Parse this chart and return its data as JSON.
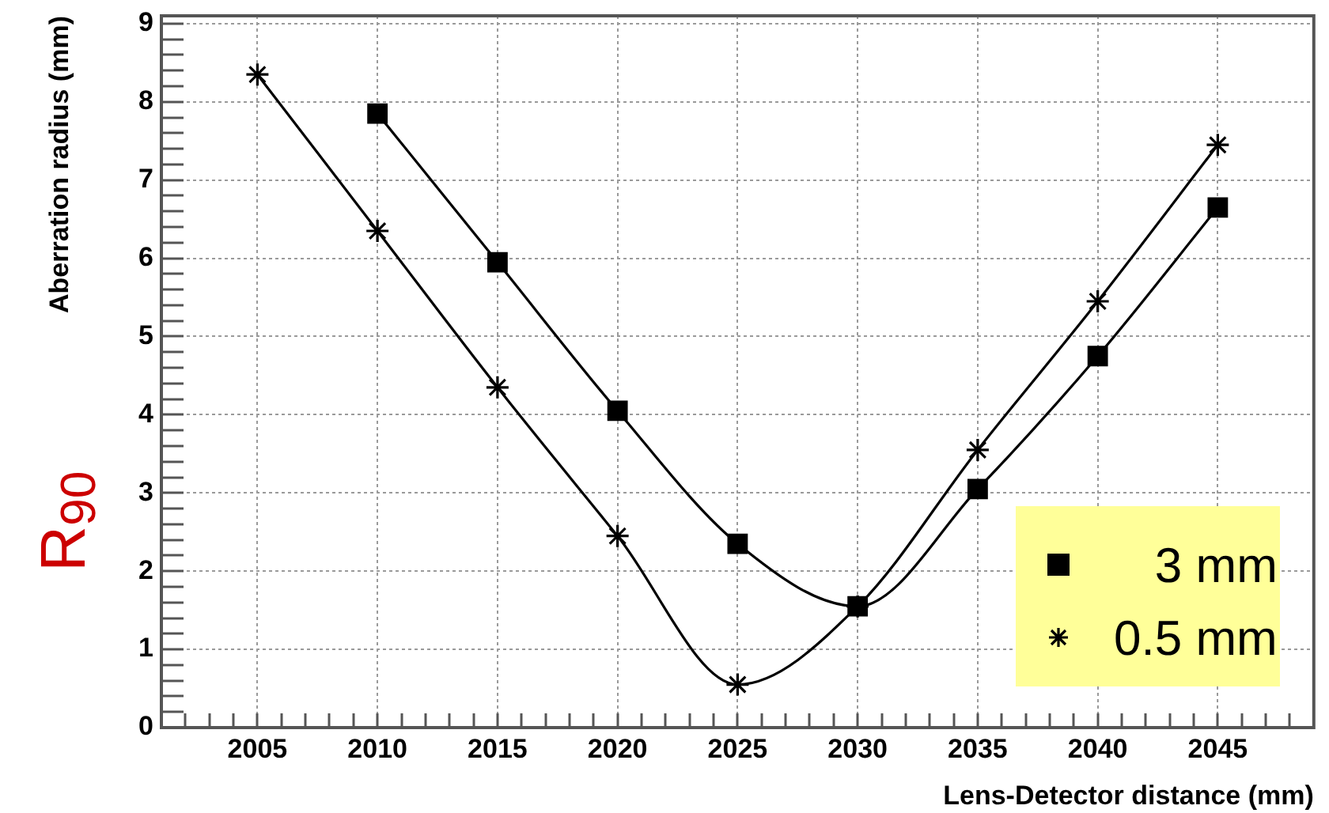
{
  "chart_data": {
    "type": "line",
    "xlabel": "Lens-Detector distance (mm)",
    "ylabel": "Aberration radius (mm)",
    "annotations": [
      "R$_{90}$"
    ],
    "x": [
      2005,
      2010,
      2015,
      2020,
      2025,
      2030,
      2035,
      2040,
      2045
    ],
    "series": [
      {
        "name": "3 mm",
        "color": "#000000",
        "marker": "square",
        "values": [
          null,
          7.85,
          5.95,
          4.05,
          2.35,
          1.55,
          3.05,
          4.75,
          6.65
        ]
      },
      {
        "name": "0.5 mm",
        "color": "#000000",
        "marker": "cross",
        "values": [
          8.35,
          6.35,
          4.35,
          2.45,
          0.55,
          1.55,
          3.55,
          5.45,
          7.45
        ]
      }
    ],
    "xlim": [
      2001,
      2049
    ],
    "ylim": [
      0,
      9.1
    ],
    "xticks": [
      {
        "value": 2002,
        "label": null
      },
      {
        "value": 2003,
        "label": null
      },
      {
        "value": 2004,
        "label": null
      },
      2005,
      {
        "value": 2006,
        "label": null
      },
      {
        "value": 2007,
        "label": null
      },
      {
        "value": 2008,
        "label": null
      },
      {
        "value": 2009,
        "label": null
      },
      2010,
      {
        "value": 2011,
        "label": null
      },
      {
        "value": 2012,
        "label": null
      },
      {
        "value": 2013,
        "label": null
      },
      {
        "value": 2014,
        "label": null
      },
      2015,
      {
        "value": 2016,
        "label": null
      },
      {
        "value": 2017,
        "label": null
      },
      {
        "value": 2018,
        "label": null
      },
      {
        "value": 2019,
        "label": null
      },
      2020,
      {
        "value": 2021,
        "label": null
      },
      {
        "value": 2022,
        "label": null
      },
      {
        "value": 2023,
        "label": null
      },
      {
        "value": 2024,
        "label": null
      },
      2025,
      {
        "value": 2026,
        "label": null
      },
      {
        "value": 2027,
        "label": null
      },
      {
        "value": 2028,
        "label": null
      },
      {
        "value": 2029,
        "label": null
      },
      2030,
      {
        "value": 2031,
        "label": null
      },
      {
        "value": 2032,
        "label": null
      },
      {
        "value": 2033,
        "label": null
      },
      {
        "value": 2034,
        "label": null
      },
      2035,
      {
        "value": 2036,
        "label": null
      },
      {
        "value": 2037,
        "label": null
      },
      {
        "value": 2038,
        "label": null
      },
      {
        "value": 2039,
        "label": null
      },
      2040,
      {
        "value": 2041,
        "label": null
      },
      {
        "value": 2042,
        "label": null
      },
      {
        "value": 2043,
        "label": null
      },
      {
        "value": 2044,
        "label": null
      },
      2045,
      {
        "value": 2046,
        "label": null
      },
      {
        "value": 2047,
        "label": null
      },
      {
        "value": 2048,
        "label": null
      }
    ],
    "yticks": [
      0,
      {
        "value": 0.2,
        "label": null
      },
      {
        "value": 0.4,
        "label": null
      },
      {
        "value": 0.6,
        "label": null
      },
      {
        "value": 0.8,
        "label": null
      },
      1,
      {
        "value": 1.2,
        "label": null
      },
      {
        "value": 1.4,
        "label": null
      },
      {
        "value": 1.6,
        "label": null
      },
      {
        "value": 1.8,
        "label": null
      },
      2,
      {
        "value": 2.2,
        "label": null
      },
      {
        "value": 2.4,
        "label": null
      },
      {
        "value": 2.6,
        "label": null
      },
      {
        "value": 2.8,
        "label": null
      },
      3,
      {
        "value": 3.2,
        "label": null
      },
      {
        "value": 3.4,
        "label": null
      },
      {
        "value": 3.6,
        "label": null
      },
      {
        "value": 3.8,
        "label": null
      },
      4,
      {
        "value": 4.2,
        "label": null
      },
      {
        "value": 4.4,
        "label": null
      },
      {
        "value": 4.6,
        "label": null
      },
      {
        "value": 4.8,
        "label": null
      },
      5,
      {
        "value": 5.2,
        "label": null
      },
      {
        "value": 5.4,
        "label": null
      },
      {
        "value": 5.6,
        "label": null
      },
      {
        "value": 5.8,
        "label": null
      },
      6,
      {
        "value": 6.2,
        "label": null
      },
      {
        "value": 6.4,
        "label": null
      },
      {
        "value": 6.6,
        "label": null
      },
      {
        "value": 6.8,
        "label": null
      },
      7,
      {
        "value": 7.2,
        "label": null
      },
      {
        "value": 7.4,
        "label": null
      },
      {
        "value": 7.6,
        "label": null
      },
      {
        "value": 7.8,
        "label": null
      },
      8,
      {
        "value": 8.2,
        "label": null
      },
      {
        "value": 8.4,
        "label": null
      },
      {
        "value": 8.6,
        "label": null
      },
      {
        "value": 8.8,
        "label": null
      },
      9
    ],
    "grid": true,
    "legend": "bottom right"
  }
}
